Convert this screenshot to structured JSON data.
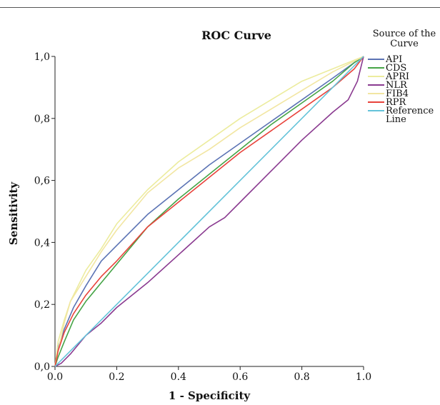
{
  "chart_data": {
    "type": "line",
    "title": "ROC Curve",
    "xlabel": "1 - Specificity",
    "ylabel": "Sensitivity",
    "xlim": [
      0.0,
      1.0
    ],
    "ylim": [
      0.0,
      1.0
    ],
    "x_ticks": [
      "0.0",
      "0.2",
      "0.4",
      "0.6",
      "0.8",
      "1.0"
    ],
    "y_ticks": [
      "0,0",
      "0,2",
      "0,4",
      "0,6",
      "0,8",
      "1,0"
    ],
    "grid": false,
    "legend_title_lines": [
      "Source of the",
      "Curve"
    ],
    "legend_placement": "top-right",
    "series": [
      {
        "name": "API",
        "color": "#5b73b4",
        "points": [
          [
            0,
            0
          ],
          [
            0.01,
            0.06
          ],
          [
            0.03,
            0.12
          ],
          [
            0.06,
            0.19
          ],
          [
            0.1,
            0.26
          ],
          [
            0.15,
            0.34
          ],
          [
            0.2,
            0.39
          ],
          [
            0.3,
            0.49
          ],
          [
            0.4,
            0.57
          ],
          [
            0.5,
            0.65
          ],
          [
            0.6,
            0.72
          ],
          [
            0.7,
            0.79
          ],
          [
            0.8,
            0.86
          ],
          [
            0.9,
            0.93
          ],
          [
            0.97,
            0.98
          ],
          [
            1,
            1
          ]
        ]
      },
      {
        "name": "CDS",
        "color": "#46a447",
        "points": [
          [
            0,
            0
          ],
          [
            0.01,
            0.03
          ],
          [
            0.03,
            0.08
          ],
          [
            0.06,
            0.15
          ],
          [
            0.1,
            0.21
          ],
          [
            0.15,
            0.27
          ],
          [
            0.2,
            0.33
          ],
          [
            0.3,
            0.45
          ],
          [
            0.4,
            0.54
          ],
          [
            0.5,
            0.62
          ],
          [
            0.6,
            0.7
          ],
          [
            0.7,
            0.78
          ],
          [
            0.8,
            0.85
          ],
          [
            0.9,
            0.92
          ],
          [
            0.97,
            0.98
          ],
          [
            1,
            1
          ]
        ]
      },
      {
        "name": "APRI",
        "color": "#ecec9e",
        "points": [
          [
            0,
            0
          ],
          [
            0.01,
            0.08
          ],
          [
            0.03,
            0.15
          ],
          [
            0.05,
            0.21
          ],
          [
            0.1,
            0.31
          ],
          [
            0.15,
            0.38
          ],
          [
            0.2,
            0.46
          ],
          [
            0.3,
            0.57
          ],
          [
            0.4,
            0.66
          ],
          [
            0.5,
            0.73
          ],
          [
            0.6,
            0.8
          ],
          [
            0.7,
            0.86
          ],
          [
            0.8,
            0.92
          ],
          [
            0.9,
            0.96
          ],
          [
            1,
            1
          ]
        ]
      },
      {
        "name": "NLR",
        "color": "#8a3a90",
        "points": [
          [
            0,
            0
          ],
          [
            0.02,
            0.01
          ],
          [
            0.05,
            0.04
          ],
          [
            0.1,
            0.1
          ],
          [
            0.15,
            0.14
          ],
          [
            0.2,
            0.19
          ],
          [
            0.3,
            0.27
          ],
          [
            0.4,
            0.36
          ],
          [
            0.5,
            0.45
          ],
          [
            0.55,
            0.48
          ],
          [
            0.6,
            0.53
          ],
          [
            0.7,
            0.63
          ],
          [
            0.8,
            0.73
          ],
          [
            0.9,
            0.82
          ],
          [
            0.95,
            0.86
          ],
          [
            0.98,
            0.92
          ],
          [
            1,
            1
          ]
        ]
      },
      {
        "name": "FIB4",
        "color": "#f2e6a2",
        "points": [
          [
            0,
            0
          ],
          [
            0.01,
            0.05
          ],
          [
            0.03,
            0.14
          ],
          [
            0.05,
            0.21
          ],
          [
            0.1,
            0.29
          ],
          [
            0.15,
            0.37
          ],
          [
            0.2,
            0.44
          ],
          [
            0.3,
            0.56
          ],
          [
            0.4,
            0.64
          ],
          [
            0.5,
            0.7
          ],
          [
            0.6,
            0.77
          ],
          [
            0.7,
            0.83
          ],
          [
            0.8,
            0.89
          ],
          [
            0.9,
            0.95
          ],
          [
            1,
            1
          ]
        ]
      },
      {
        "name": "RPR",
        "color": "#e8423b",
        "points": [
          [
            0,
            0
          ],
          [
            0.01,
            0.05
          ],
          [
            0.03,
            0.11
          ],
          [
            0.06,
            0.17
          ],
          [
            0.1,
            0.23
          ],
          [
            0.15,
            0.29
          ],
          [
            0.2,
            0.34
          ],
          [
            0.3,
            0.45
          ],
          [
            0.4,
            0.53
          ],
          [
            0.5,
            0.61
          ],
          [
            0.6,
            0.69
          ],
          [
            0.7,
            0.76
          ],
          [
            0.8,
            0.83
          ],
          [
            0.9,
            0.9
          ],
          [
            0.97,
            0.96
          ],
          [
            1,
            1
          ]
        ]
      },
      {
        "name": "Reference Line",
        "legend_lines": [
          "Reference",
          "Line"
        ],
        "color": "#64c3d9",
        "points": [
          [
            0,
            0
          ],
          [
            1,
            1
          ]
        ]
      }
    ]
  }
}
